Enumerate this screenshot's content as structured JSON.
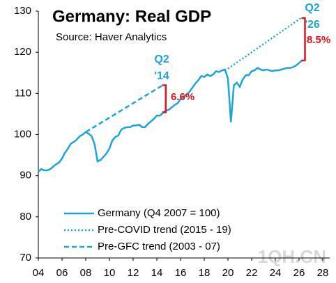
{
  "chart_data": {
    "type": "line",
    "title": "Germany: Real GDP",
    "subtitle": "Source: Haver Analytics",
    "xlim": [
      2004,
      2028
    ],
    "xticks": [
      {
        "value": 2004,
        "label": "04"
      },
      {
        "value": 2006,
        "label": "06"
      },
      {
        "value": 2008,
        "label": "08"
      },
      {
        "value": 2010,
        "label": "10"
      },
      {
        "value": 2012,
        "label": "12"
      },
      {
        "value": 2014,
        "label": "14"
      },
      {
        "value": 2016,
        "label": "16"
      },
      {
        "value": 2018,
        "label": "18"
      },
      {
        "value": 2020,
        "label": "20"
      },
      {
        "value": 2022,
        "label": "22"
      },
      {
        "value": 2024,
        "label": "24"
      },
      {
        "value": 2026,
        "label": "26"
      },
      {
        "value": 2028,
        "label": "28"
      }
    ],
    "ylim": [
      70,
      130
    ],
    "yticks": [
      70,
      80,
      90,
      100,
      110,
      120,
      130
    ],
    "grid": false,
    "legend": "lower center",
    "series": [
      {
        "name": "Germany (Q4 2007 = 100)",
        "color": "#1ca4dc",
        "style": "solid",
        "x": [
          2004,
          2004.25,
          2004.5,
          2004.75,
          2005,
          2005.25,
          2005.5,
          2005.75,
          2006,
          2006.25,
          2006.5,
          2006.75,
          2007,
          2007.25,
          2007.5,
          2007.75,
          2008,
          2008.25,
          2008.5,
          2008.75,
          2009,
          2009.25,
          2009.5,
          2009.75,
          2010,
          2010.25,
          2010.5,
          2010.75,
          2011,
          2011.25,
          2011.5,
          2011.75,
          2012,
          2012.25,
          2012.5,
          2012.75,
          2013,
          2013.25,
          2013.5,
          2013.75,
          2014,
          2014.25,
          2014.5,
          2014.75,
          2015,
          2015.25,
          2015.5,
          2015.75,
          2016,
          2016.25,
          2016.5,
          2016.75,
          2017,
          2017.25,
          2017.5,
          2017.75,
          2018,
          2018.25,
          2018.5,
          2018.75,
          2019,
          2019.25,
          2019.5,
          2019.75,
          2020,
          2020.25,
          2020.5,
          2020.75,
          2021,
          2021.25,
          2021.5,
          2021.75,
          2022,
          2022.25,
          2022.5,
          2022.75,
          2023,
          2023.25,
          2023.5,
          2023.75,
          2024,
          2024.25,
          2024.5,
          2024.75,
          2025,
          2025.25,
          2025.5,
          2025.75,
          2026,
          2026.25
        ],
        "values": [
          91,
          91.6,
          91.3,
          91.3,
          91.6,
          92.2,
          92.8,
          93.2,
          94.2,
          95.6,
          96.6,
          97.8,
          98.2,
          98.8,
          99.6,
          100,
          100.6,
          100.2,
          99.6,
          97.6,
          93.5,
          93.8,
          94.6,
          95.4,
          96.6,
          98.6,
          99.4,
          99.8,
          101.2,
          101.6,
          101.8,
          101.8,
          102.2,
          102.2,
          102.4,
          101.8,
          101.8,
          102.6,
          103.2,
          103.8,
          104.6,
          104.6,
          105.2,
          105.8,
          106,
          106.6,
          107.2,
          107.6,
          108.6,
          109.2,
          109.6,
          110.4,
          111.4,
          112.4,
          113.2,
          114.2,
          114,
          114.6,
          114.2,
          114.6,
          115.4,
          115.2,
          115.6,
          115.8,
          113.6,
          103,
          112,
          112.6,
          111.6,
          113.4,
          114.4,
          114.4,
          115.4,
          115.6,
          116.2,
          115.8,
          115.6,
          115.8,
          115.6,
          115.4,
          115.6,
          115.6,
          115.8,
          116,
          116.2,
          116.2,
          116.4,
          116.8,
          117.4,
          118
        ]
      },
      {
        "name": "Pre-COVID trend (2015 - 19)",
        "color": "#1ca4dc",
        "style": "dotted",
        "x": [
          2020,
          2026.25
        ],
        "values": [
          116,
          128.5
        ]
      },
      {
        "name": "Pre-GFC trend (2003 - 07)",
        "color": "#1ca4dc",
        "style": "dashed",
        "x": [
          2008,
          2014.5
        ],
        "values": [
          100.6,
          112
        ]
      }
    ],
    "annotations": [
      {
        "text": "Q2",
        "color": "#1ca4dc"
      },
      {
        "text": "'14",
        "color": "#1ca4dc"
      },
      {
        "text": "6.6%",
        "color": "#e0141c"
      },
      {
        "text": "Q2",
        "color": "#1ca4dc"
      },
      {
        "text": "'26",
        "color": "#1ca4dc"
      },
      {
        "text": "8.5%",
        "color": "#e0141c"
      }
    ],
    "watermark": "1QH.CN"
  }
}
